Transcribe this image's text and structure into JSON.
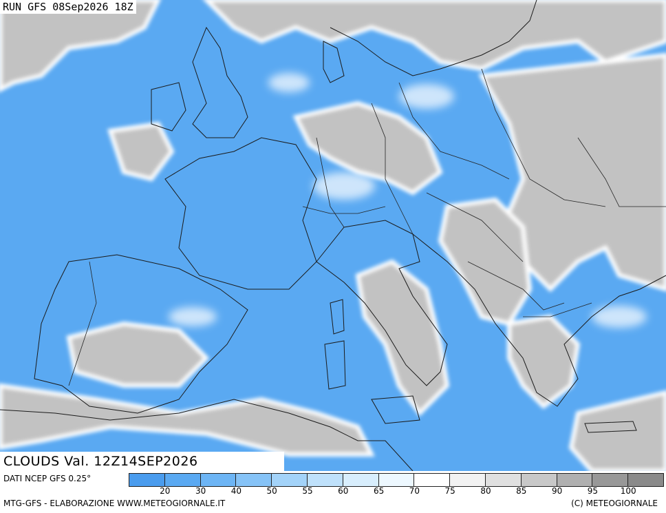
{
  "header": {
    "run_title": "RUN GFS 08Sep2026 18Z"
  },
  "map": {
    "label": "CLOUDS Val. 12Z14SEP2026",
    "sea_color": "#5aa9f2",
    "land_color": "#c2c2c2"
  },
  "legend": {
    "source": "DATI NCEP GFS 0.25°",
    "swatch_colors": [
      "#4a9cee",
      "#5aa9f2",
      "#6db5f5",
      "#86c3f7",
      "#a3d3f9",
      "#bfe1fb",
      "#d8eefd",
      "#edf8ff",
      "#ffffff",
      "#f2f2f2",
      "#e0e0e0",
      "#c8c8c8",
      "#b0b0b0",
      "#989898",
      "#8a8a8a"
    ],
    "ticks": [
      "20",
      "30",
      "40",
      "50",
      "55",
      "60",
      "65",
      "70",
      "75",
      "80",
      "85",
      "90",
      "95",
      "100"
    ]
  },
  "footer": {
    "credit_left": "MTG-GFS - ELABORAZIONE WWW.METEOGIORNALE.IT",
    "credit_right": "(C) METEOGIORNALE"
  }
}
